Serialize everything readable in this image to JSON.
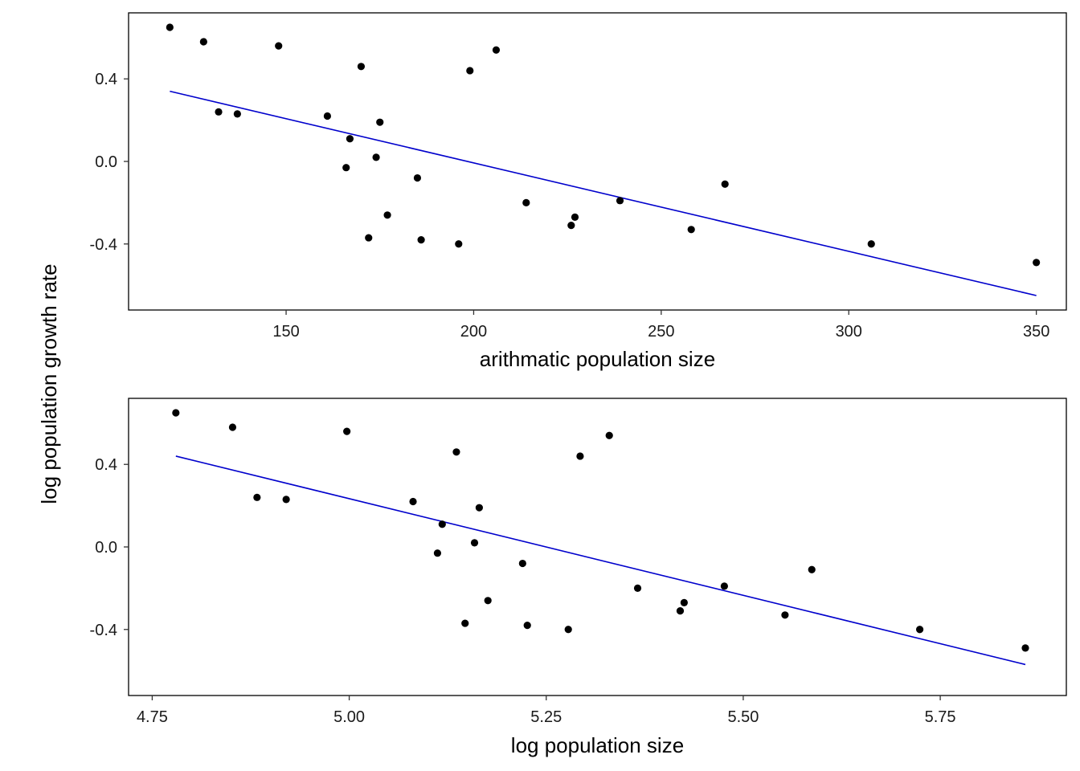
{
  "ylabel": "log population growth rate",
  "colors": {
    "point": "#000000",
    "fit_line": "#0000CC",
    "frame": "#000000",
    "background": "#ffffff"
  },
  "chart_data": [
    {
      "type": "scatter",
      "xlabel": "arithmatic population size",
      "ylabel": "",
      "xlim": [
        108,
        358
      ],
      "ylim": [
        -0.72,
        0.72
      ],
      "xticks": [
        "150",
        "200",
        "250",
        "300",
        "350"
      ],
      "yticks": [
        "0.4",
        "0.0",
        "-0.4"
      ],
      "grid": false,
      "x": [
        119,
        128,
        132,
        137,
        148,
        161,
        166,
        167,
        170,
        172,
        174,
        175,
        177,
        185,
        186,
        196,
        199,
        206,
        214,
        226,
        227,
        239,
        258,
        267,
        306,
        350
      ],
      "y": [
        0.65,
        0.58,
        0.24,
        0.23,
        0.56,
        0.22,
        -0.03,
        0.11,
        0.46,
        -0.37,
        0.02,
        0.19,
        -0.26,
        -0.08,
        -0.38,
        -0.4,
        0.44,
        0.54,
        -0.2,
        -0.31,
        -0.27,
        -0.19,
        -0.33,
        -0.11,
        -0.4,
        -0.49
      ],
      "fit_line": {
        "x": [
          119,
          350
        ],
        "y": [
          0.34,
          -0.65
        ]
      }
    },
    {
      "type": "scatter",
      "xlabel": "log population size",
      "ylabel": "",
      "xlim": [
        4.72,
        5.91
      ],
      "ylim": [
        -0.72,
        0.72
      ],
      "xticks": [
        "4.75",
        "5.00",
        "5.25",
        "5.50",
        "5.75"
      ],
      "yticks": [
        "0.4",
        "0.0",
        "-0.4"
      ],
      "grid": false,
      "x": [
        4.78,
        4.852,
        4.883,
        4.92,
        4.997,
        5.081,
        5.112,
        5.118,
        5.136,
        5.147,
        5.159,
        5.165,
        5.176,
        5.22,
        5.226,
        5.278,
        5.293,
        5.33,
        5.366,
        5.42,
        5.425,
        5.476,
        5.553,
        5.587,
        5.724,
        5.858
      ],
      "y": [
        0.65,
        0.58,
        0.24,
        0.23,
        0.56,
        0.22,
        -0.03,
        0.11,
        0.46,
        -0.37,
        0.02,
        0.19,
        -0.26,
        -0.08,
        -0.38,
        -0.4,
        0.44,
        0.54,
        -0.2,
        -0.31,
        -0.27,
        -0.19,
        -0.33,
        -0.11,
        -0.4,
        -0.49
      ],
      "fit_line": {
        "x": [
          4.78,
          5.858
        ],
        "y": [
          0.44,
          -0.57
        ]
      }
    }
  ]
}
